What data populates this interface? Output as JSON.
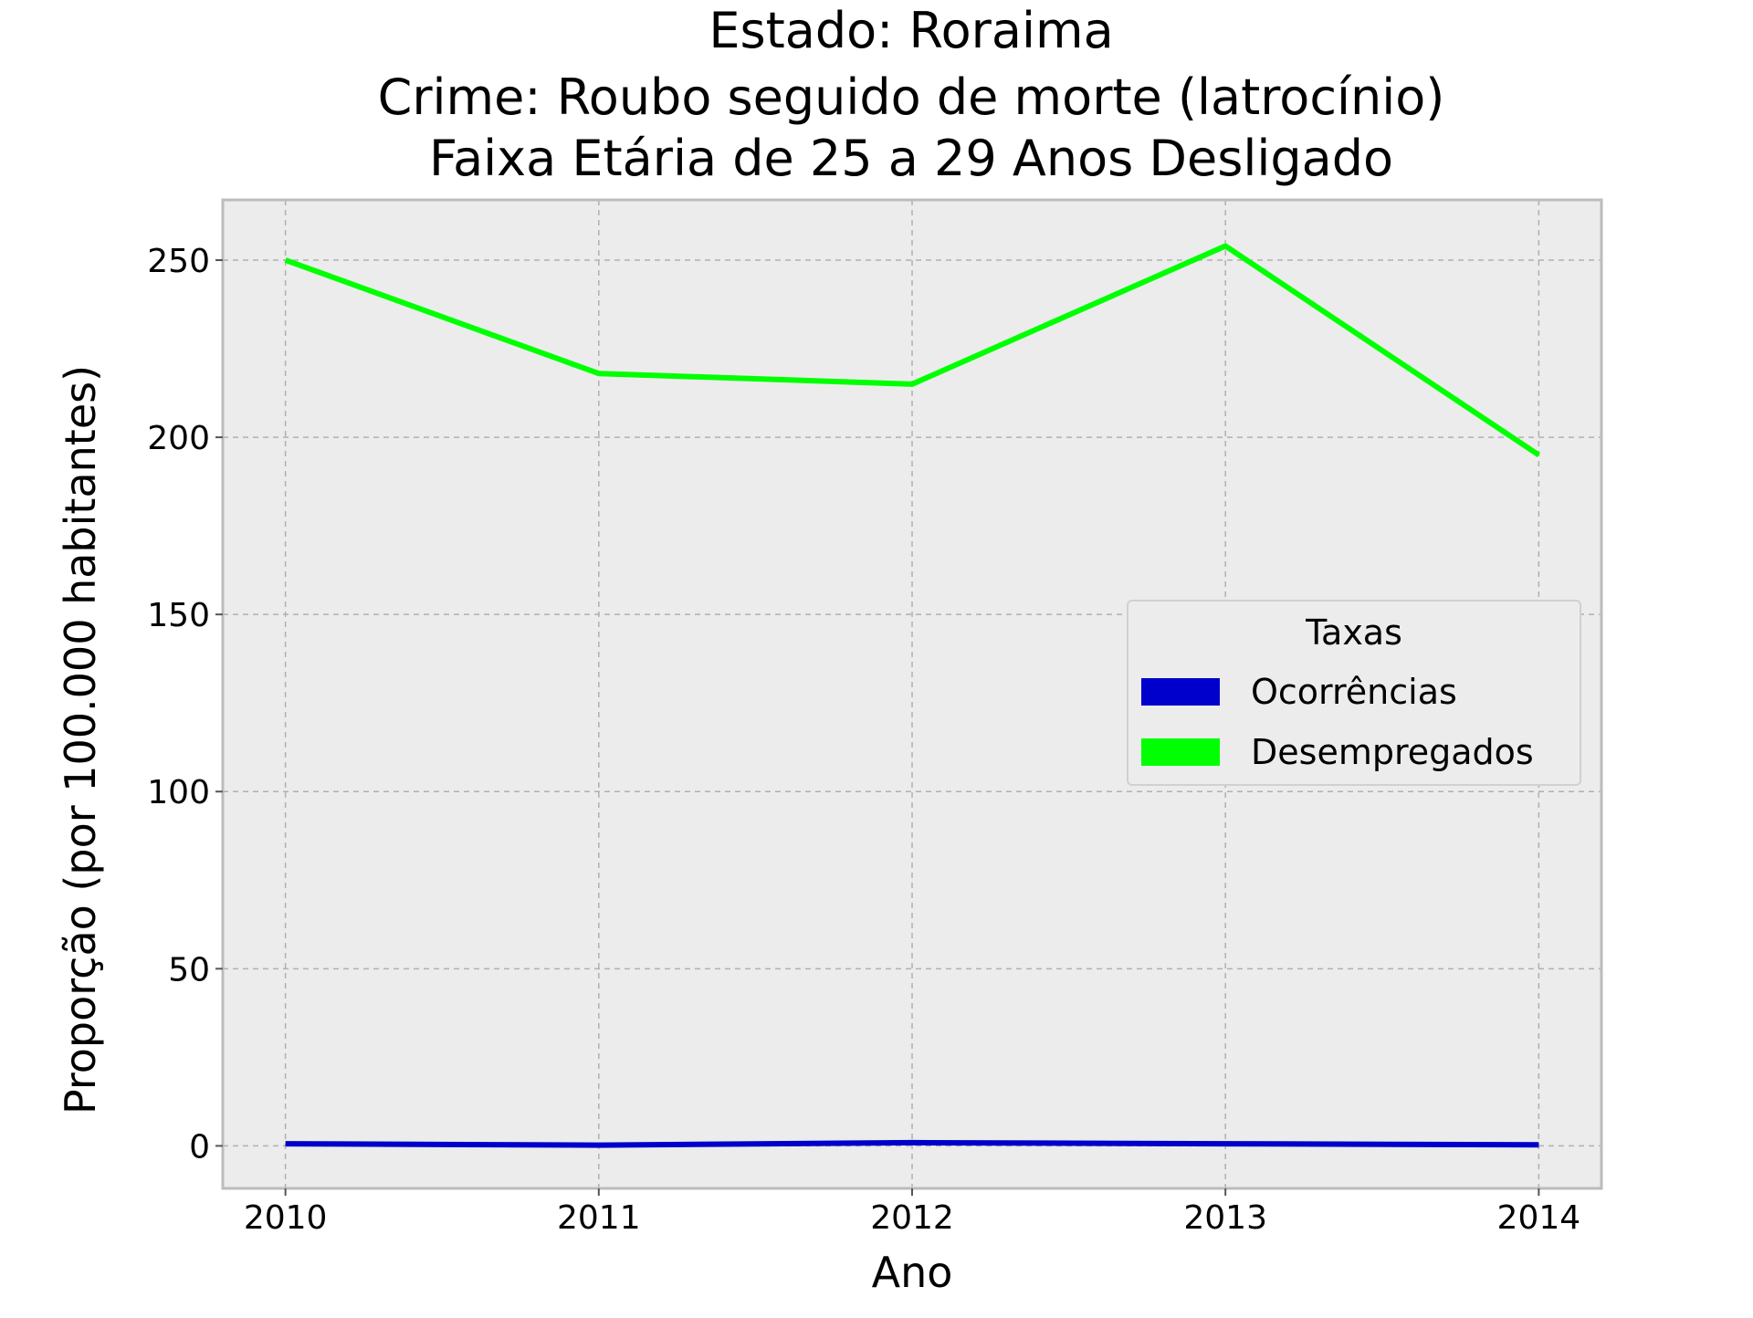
{
  "chart_data": {
    "type": "line",
    "title_lines": [
      "Estado: Roraima",
      "Crime: Roubo seguido de morte (latrocínio)",
      "Faixa Etária de 25 a 29 Anos   Desligado"
    ],
    "xlabel": "Ano",
    "ylabel": "Proporção (por 100.000 habitantes)",
    "x": [
      2010,
      2011,
      2012,
      2013,
      2014
    ],
    "xticks": [
      "2010",
      "2011",
      "2012",
      "2013",
      "2014"
    ],
    "yticks": [
      0,
      50,
      100,
      150,
      200,
      250
    ],
    "xlim": [
      2009.8,
      2014.2
    ],
    "ylim": [
      -12,
      267
    ],
    "grid": true,
    "legend": {
      "title": "Taxas",
      "placement": "center-right"
    },
    "series": [
      {
        "name": "Ocorrências",
        "color": "#0000cc",
        "values": [
          0.6,
          0.2,
          0.9,
          0.6,
          0.3
        ]
      },
      {
        "name": "Desempregados",
        "color": "#00ff00",
        "values": [
          250,
          218,
          215,
          254,
          195
        ]
      }
    ],
    "colors": {
      "plot_background": "#ececec",
      "grid": "#b0b0b0",
      "frame": "#bcbcbc"
    }
  }
}
